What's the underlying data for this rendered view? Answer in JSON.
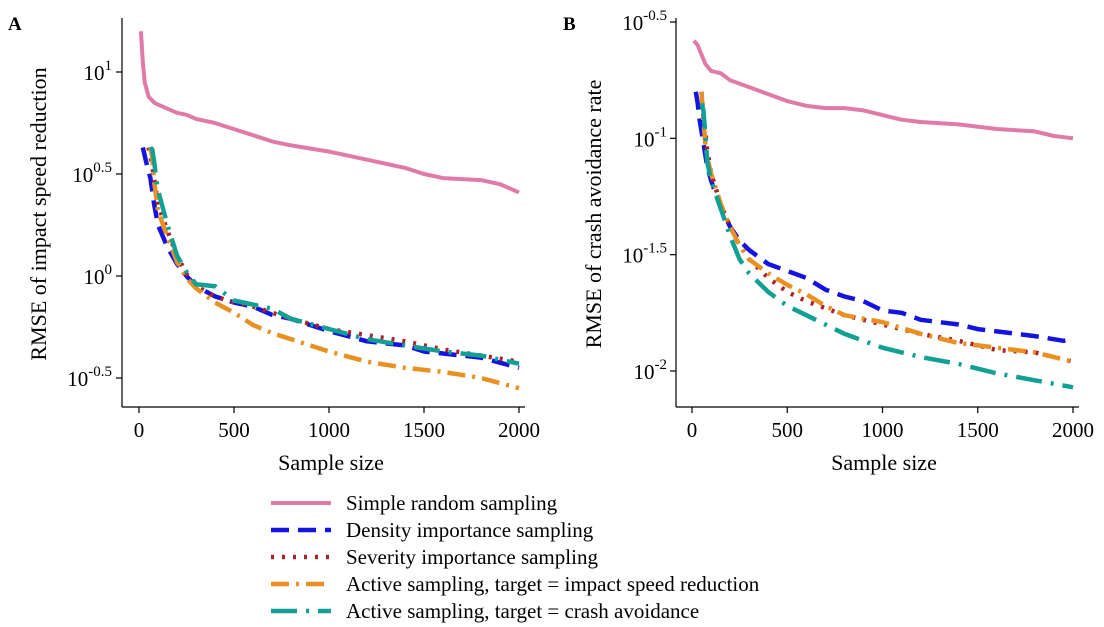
{
  "series_styles": [
    {
      "name": "Simple random sampling",
      "color": "#E07AA8",
      "dash": "",
      "width": 4
    },
    {
      "name": "Density importance sampling",
      "color": "#1414E0",
      "dash": "18,9",
      "width": 4.5
    },
    {
      "name": "Severity importance sampling",
      "color": "#A8242C",
      "dash": "3,8",
      "width": 4.5
    },
    {
      "name": "Active sampling, target = impact speed reduction",
      "color": "#E89020",
      "dash": "18,7,3,7",
      "width": 4.5
    },
    {
      "name": "Active sampling, target = crash avoidance",
      "color": "#12A095",
      "dash": "26,9,3,9",
      "width": 4.5
    }
  ],
  "legend": [
    "Simple random sampling",
    "Density importance sampling",
    "Severity importance sampling",
    "Active sampling, target = impact speed reduction",
    "Active sampling, target = crash avoidance"
  ],
  "chart_data": [
    {
      "type": "line",
      "panel_label": "A",
      "xlabel": "Sample size",
      "ylabel": "RMSE of impact speed reduction",
      "y_scale": "log10",
      "xlim": [
        0,
        2000
      ],
      "ylim_log10": [
        -0.55,
        1.29
      ],
      "xticks": [
        0,
        500,
        1000,
        1500,
        2000
      ],
      "xtick_labels": [
        "0",
        "500",
        "1000",
        "1500",
        "2000"
      ],
      "yticks_log10": [
        -0.5,
        0,
        0.5,
        1
      ],
      "ytick_labels": [
        {
          "base": "10",
          "exp": "-0.5"
        },
        {
          "base": "10",
          "exp": "0"
        },
        {
          "base": "10",
          "exp": "0.5"
        },
        {
          "base": "10",
          "exp": "1"
        }
      ],
      "series": [
        {
          "name": "Simple random sampling",
          "x": [
            10,
            20,
            30,
            50,
            80,
            100,
            150,
            200,
            250,
            300,
            400,
            500,
            600,
            700,
            800,
            1000,
            1200,
            1400,
            1500,
            1600,
            1800,
            1900,
            2000
          ],
          "log10_y": [
            1.2,
            1.05,
            0.95,
            0.88,
            0.85,
            0.84,
            0.82,
            0.8,
            0.79,
            0.77,
            0.75,
            0.72,
            0.69,
            0.66,
            0.64,
            0.61,
            0.57,
            0.53,
            0.5,
            0.48,
            0.47,
            0.45,
            0.41
          ]
        },
        {
          "name": "Density importance sampling",
          "x": [
            20,
            40,
            60,
            80,
            100,
            150,
            200,
            250,
            300,
            400,
            500,
            600,
            700,
            800,
            1000,
            1200,
            1400,
            1500,
            1600,
            1800,
            2000
          ],
          "log10_y": [
            0.63,
            0.55,
            0.48,
            0.35,
            0.25,
            0.14,
            0.06,
            0.0,
            -0.05,
            -0.1,
            -0.13,
            -0.15,
            -0.19,
            -0.21,
            -0.27,
            -0.32,
            -0.34,
            -0.37,
            -0.38,
            -0.4,
            -0.45
          ]
        },
        {
          "name": "Severity importance sampling",
          "x": [
            50,
            60,
            80,
            100,
            150,
            200,
            250,
            300,
            400,
            500,
            600,
            700,
            800,
            1000,
            1200,
            1400,
            1600,
            1800,
            2000
          ],
          "log10_y": [
            0.63,
            0.59,
            0.48,
            0.35,
            0.22,
            0.1,
            0.01,
            -0.05,
            -0.1,
            -0.13,
            -0.15,
            -0.18,
            -0.21,
            -0.26,
            -0.29,
            -0.32,
            -0.36,
            -0.39,
            -0.42
          ]
        },
        {
          "name": "Active sampling, target = impact speed reduction",
          "x": [
            60,
            70,
            80,
            100,
            150,
            200,
            250,
            300,
            400,
            500,
            600,
            700,
            800,
            1000,
            1200,
            1400,
            1600,
            1800,
            2000
          ],
          "log10_y": [
            0.63,
            0.58,
            0.46,
            0.32,
            0.19,
            0.07,
            -0.01,
            -0.06,
            -0.13,
            -0.18,
            -0.24,
            -0.28,
            -0.31,
            -0.37,
            -0.42,
            -0.45,
            -0.47,
            -0.5,
            -0.55
          ]
        },
        {
          "name": "Active sampling, target = crash avoidance",
          "x": [
            60,
            70,
            80,
            90,
            100,
            150,
            200,
            250,
            300,
            400,
            500,
            600,
            700,
            800,
            1000,
            1200,
            1400,
            1600,
            1800,
            2000
          ],
          "log10_y": [
            0.63,
            0.62,
            0.56,
            0.48,
            0.42,
            0.25,
            0.1,
            0.02,
            -0.04,
            -0.05,
            -0.12,
            -0.14,
            -0.16,
            -0.21,
            -0.26,
            -0.31,
            -0.34,
            -0.37,
            -0.39,
            -0.43
          ]
        }
      ]
    },
    {
      "type": "line",
      "panel_label": "B",
      "xlabel": "Sample size",
      "ylabel": "RMSE of crash avoidance rate",
      "y_scale": "log10",
      "xlim": [
        0,
        2000
      ],
      "ylim_log10": [
        -2.15,
        -0.45
      ],
      "xticks": [
        0,
        500,
        1000,
        1500,
        2000
      ],
      "xtick_labels": [
        "0",
        "500",
        "1000",
        "1500",
        "2000"
      ],
      "yticks_log10": [
        -2,
        -1.5,
        -1,
        -0.5
      ],
      "ytick_labels": [
        {
          "base": "10",
          "exp": "-2"
        },
        {
          "base": "10",
          "exp": "-1.5"
        },
        {
          "base": "10",
          "exp": "-1"
        },
        {
          "base": "10",
          "exp": "-0.5"
        }
      ],
      "series": [
        {
          "name": "Simple random sampling",
          "x": [
            10,
            30,
            50,
            70,
            100,
            150,
            200,
            300,
            400,
            500,
            600,
            700,
            800,
            900,
            1000,
            1100,
            1200,
            1400,
            1600,
            1800,
            1900,
            2000
          ],
          "log10_y": [
            -0.58,
            -0.6,
            -0.64,
            -0.68,
            -0.71,
            -0.72,
            -0.75,
            -0.78,
            -0.81,
            -0.84,
            -0.86,
            -0.87,
            -0.87,
            -0.88,
            -0.9,
            -0.92,
            -0.93,
            -0.94,
            -0.96,
            -0.97,
            -0.99,
            -1.0
          ]
        },
        {
          "name": "Density importance sampling",
          "x": [
            20,
            30,
            40,
            60,
            80,
            100,
            150,
            200,
            250,
            300,
            400,
            500,
            600,
            700,
            800,
            900,
            1000,
            1100,
            1200,
            1400,
            1500,
            1600,
            1800,
            1950,
            2000
          ],
          "log10_y": [
            -0.8,
            -0.85,
            -0.92,
            -1.02,
            -1.12,
            -1.18,
            -1.3,
            -1.38,
            -1.44,
            -1.48,
            -1.54,
            -1.57,
            -1.6,
            -1.65,
            -1.68,
            -1.7,
            -1.74,
            -1.75,
            -1.78,
            -1.8,
            -1.82,
            -1.83,
            -1.85,
            -1.87,
            -1.86
          ]
        },
        {
          "name": "Severity importance sampling",
          "x": [
            50,
            60,
            80,
            100,
            150,
            200,
            250,
            300,
            400,
            500,
            600,
            700,
            800,
            1000,
            1200,
            1400,
            1500,
            1600,
            1800,
            2000
          ],
          "log10_y": [
            -0.8,
            -0.9,
            -1.05,
            -1.15,
            -1.28,
            -1.38,
            -1.46,
            -1.52,
            -1.6,
            -1.66,
            -1.7,
            -1.73,
            -1.76,
            -1.8,
            -1.84,
            -1.87,
            -1.89,
            -1.91,
            -1.92,
            -1.96
          ]
        },
        {
          "name": "Active sampling, target = impact speed reduction",
          "x": [
            50,
            60,
            70,
            80,
            100,
            150,
            200,
            250,
            300,
            400,
            500,
            600,
            700,
            800,
            1000,
            1200,
            1400,
            1500,
            1600,
            1800,
            2000
          ],
          "log10_y": [
            -0.8,
            -0.92,
            -1.02,
            -1.08,
            -1.15,
            -1.28,
            -1.38,
            -1.46,
            -1.52,
            -1.58,
            -1.63,
            -1.67,
            -1.72,
            -1.76,
            -1.79,
            -1.84,
            -1.88,
            -1.89,
            -1.9,
            -1.92,
            -1.96
          ]
        },
        {
          "name": "Active sampling, target = crash avoidance",
          "x": [
            50,
            60,
            70,
            80,
            100,
            150,
            200,
            250,
            300,
            400,
            500,
            600,
            700,
            800,
            900,
            1000,
            1200,
            1400,
            1500,
            1600,
            1800,
            2000
          ],
          "log10_y": [
            -0.85,
            -0.88,
            -0.98,
            -1.1,
            -1.18,
            -1.3,
            -1.42,
            -1.52,
            -1.58,
            -1.66,
            -1.72,
            -1.76,
            -1.8,
            -1.84,
            -1.87,
            -1.9,
            -1.94,
            -1.97,
            -1.99,
            -2.01,
            -2.04,
            -2.07
          ]
        }
      ]
    }
  ]
}
